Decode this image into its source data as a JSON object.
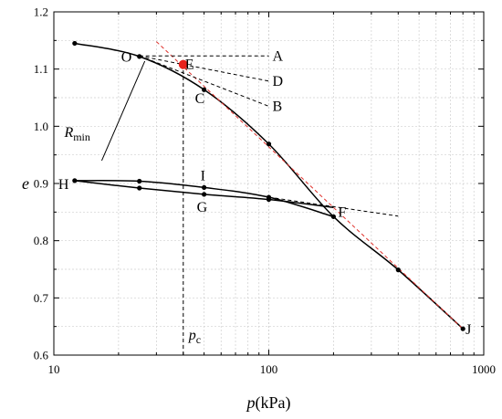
{
  "chart_data": {
    "type": "line",
    "xscale": "log",
    "xlim": [
      10,
      1000
    ],
    "ylim": [
      0.6,
      1.2
    ],
    "xticks": [
      10,
      100,
      1000
    ],
    "xtick_labels": [
      "10",
      "100",
      "1000"
    ],
    "yticks": [
      0.6,
      0.7,
      0.8,
      0.9,
      1.0,
      1.1,
      1.2
    ],
    "ytick_labels": [
      "0.6",
      "0.7",
      "0.8",
      "0.9",
      "1.0",
      "1.1",
      "1.2"
    ],
    "xlabel": {
      "italic": "p",
      "unit": "(kPa)"
    },
    "ylabel": "e",
    "grid": true,
    "series": [
      {
        "id": "loading",
        "style": "solid",
        "color": "#000000",
        "x": [
          12.5,
          25,
          50,
          100,
          200,
          400,
          800
        ],
        "y": [
          1.145,
          1.122,
          1.064,
          0.969,
          0.842,
          0.749,
          0.646
        ],
        "markers": [
          [
            12.5,
            1.145
          ],
          [
            25,
            1.122
          ],
          [
            50,
            1.064
          ],
          [
            100,
            0.969
          ]
        ]
      },
      {
        "id": "unloading",
        "style": "solid",
        "color": "#000000",
        "x": [
          200,
          100,
          50,
          25,
          12.5
        ],
        "y": [
          0.858,
          0.872,
          0.881,
          0.892,
          0.905
        ],
        "markers": [
          [
            100,
            0.872
          ],
          [
            50,
            0.881
          ],
          [
            25,
            0.892
          ],
          [
            12.5,
            0.905
          ]
        ]
      },
      {
        "id": "reloading",
        "style": "solid",
        "color": "#000000",
        "x": [
          12.5,
          25,
          50,
          100,
          200
        ],
        "y": [
          0.905,
          0.904,
          0.893,
          0.876,
          0.842
        ],
        "markers": [
          [
            25,
            0.904
          ],
          [
            50,
            0.893
          ],
          [
            100,
            0.876
          ],
          [
            200,
            0.842
          ],
          [
            400,
            0.749
          ],
          [
            800,
            0.646
          ]
        ]
      },
      {
        "id": "virgin-compression-line",
        "style": "dashed",
        "color": "#e0302a",
        "x": [
          30,
          800
        ],
        "y": [
          1.148,
          0.646
        ]
      },
      {
        "id": "line-OA",
        "style": "dashed",
        "color": "#000000",
        "x": [
          25,
          100
        ],
        "y": [
          1.123,
          1.123
        ]
      },
      {
        "id": "line-OD",
        "style": "dashed",
        "color": "#000000",
        "x": [
          25,
          100
        ],
        "y": [
          1.123,
          1.079
        ]
      },
      {
        "id": "line-OB",
        "style": "dashed",
        "color": "#000000",
        "x": [
          25,
          100
        ],
        "y": [
          1.123,
          1.035
        ]
      },
      {
        "id": "line-F",
        "style": "dashed",
        "color": "#000000",
        "x": [
          100,
          400
        ],
        "y": [
          0.876,
          0.843
        ]
      },
      {
        "id": "pc-line",
        "style": "dashed",
        "color": "#000000",
        "x": [
          40,
          40
        ],
        "y": [
          0.6,
          1.108
        ]
      },
      {
        "id": "Rmin-line",
        "style": "solid",
        "color": "#000000",
        "x": [
          16.7,
          26.5
        ],
        "y": [
          0.94,
          1.114
        ]
      }
    ],
    "highlight_point": {
      "x": 40,
      "y": 1.108,
      "color": "#e8211c"
    },
    "annotations": [
      {
        "text": "O",
        "x": 25,
        "y": 1.123
      },
      {
        "text": "E",
        "x": 40,
        "y": 1.108
      },
      {
        "text": "A",
        "x": 100,
        "y": 1.123
      },
      {
        "text": "D",
        "x": 100,
        "y": 1.079
      },
      {
        "text": "B",
        "x": 100,
        "y": 1.035
      },
      {
        "text": "C",
        "x": 50,
        "y": 1.064
      },
      {
        "text": "I",
        "x": 50,
        "y": 0.893
      },
      {
        "text": "G",
        "x": 50,
        "y": 0.881
      },
      {
        "text": "H",
        "x": 12.5,
        "y": 0.905
      },
      {
        "text": "F",
        "x": 200,
        "y": 0.858
      },
      {
        "text": "J",
        "x": 800,
        "y": 0.646
      },
      {
        "text": "R",
        "sub": "min",
        "x": 16.7,
        "y": 0.94
      },
      {
        "text": "p",
        "sub": "c",
        "x": 40,
        "y": 0.6
      }
    ]
  }
}
